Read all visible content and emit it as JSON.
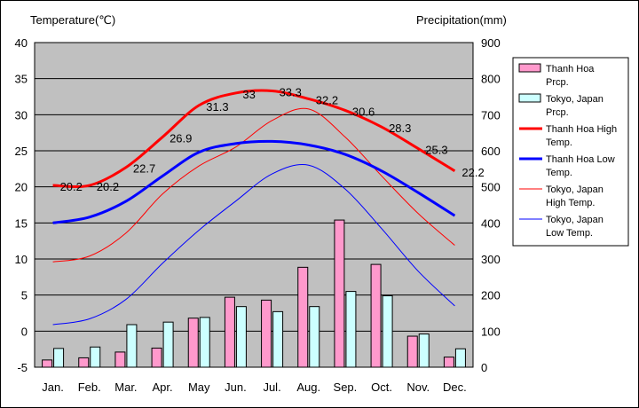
{
  "chart_data": {
    "type": "bar+line",
    "title": "",
    "left_axis": {
      "label": "Temperature(℃)",
      "ylim": [
        -5,
        40
      ],
      "ticks": [
        40,
        35,
        30,
        25,
        20,
        15,
        10,
        5,
        0,
        -5
      ]
    },
    "right_axis": {
      "label": "Precipitation(mm)",
      "ylim": [
        0,
        900
      ],
      "ticks": [
        900,
        800,
        700,
        600,
        500,
        400,
        300,
        200,
        100,
        0
      ]
    },
    "categories": [
      "Jan.",
      "Feb.",
      "Mar.",
      "Apr.",
      "May",
      "Jun.",
      "Jul.",
      "Aug.",
      "Sep.",
      "Oct.",
      "Nov.",
      "Dec."
    ],
    "bar_series": [
      {
        "name": "Thanh Hoa Prcp.",
        "color": "#ff99cc",
        "values": [
          20,
          26,
          42,
          53,
          136,
          194,
          186,
          277,
          408,
          285,
          86,
          28
        ]
      },
      {
        "name": "Tokyo, Japan Prcp.",
        "color": "#ccffff",
        "values": [
          52,
          56,
          118,
          125,
          138,
          168,
          154,
          168,
          210,
          198,
          92,
          51
        ]
      }
    ],
    "line_series": [
      {
        "name": "Thanh Hoa High Temp.",
        "color": "#ff0000",
        "width": 3,
        "values": [
          20.2,
          20.2,
          22.7,
          26.9,
          31.3,
          33,
          33.3,
          32.2,
          30.6,
          28.3,
          25.3,
          22.2
        ],
        "labels": [
          "20.2",
          "20.2",
          "22.7",
          "26.9",
          "31.3",
          "33",
          "33.3",
          "32.2",
          "30.6",
          "28.3",
          "25.3",
          "22.2"
        ]
      },
      {
        "name": "Thanh Hoa Low Temp.",
        "color": "#0000ff",
        "width": 3,
        "values": [
          15,
          15.8,
          18,
          21.5,
          24.8,
          26,
          26.3,
          25.8,
          24.5,
          22.2,
          19.2,
          16
        ]
      },
      {
        "name": "Tokyo, Japan High Temp.",
        "color": "#ff0000",
        "width": 1,
        "values": [
          9.6,
          10.4,
          13.6,
          19,
          22.9,
          25.5,
          29.2,
          30.8,
          26.9,
          21.5,
          16.3,
          11.9
        ]
      },
      {
        "name": "Tokyo, Japan Low Temp.",
        "color": "#0000ff",
        "width": 1,
        "values": [
          0.9,
          1.7,
          4.4,
          9.4,
          14,
          18,
          21.8,
          23,
          19.7,
          14.2,
          8.3,
          3.5
        ]
      }
    ],
    "legend": {
      "position": "right",
      "entries": [
        {
          "lines": [
            "Thanh Hoa",
            "Prcp."
          ],
          "kind": "bar",
          "color": "#ff99cc"
        },
        {
          "lines": [
            "Tokyo, Japan",
            "Prcp."
          ],
          "kind": "bar",
          "color": "#ccffff"
        },
        {
          "lines": [
            "Thanh Hoa High",
            "Temp."
          ],
          "kind": "line",
          "color": "#ff0000",
          "width": 3
        },
        {
          "lines": [
            "Thanh Hoa Low",
            "Temp."
          ],
          "kind": "line",
          "color": "#0000ff",
          "width": 3
        },
        {
          "lines": [
            "Tokyo, Japan",
            "High Temp."
          ],
          "kind": "line",
          "color": "#ff0000",
          "width": 1
        },
        {
          "lines": [
            "Tokyo, Japan",
            "Low Temp."
          ],
          "kind": "line",
          "color": "#0000ff",
          "width": 1
        }
      ]
    },
    "plot_background": "#c0c0c0",
    "grid": true
  }
}
